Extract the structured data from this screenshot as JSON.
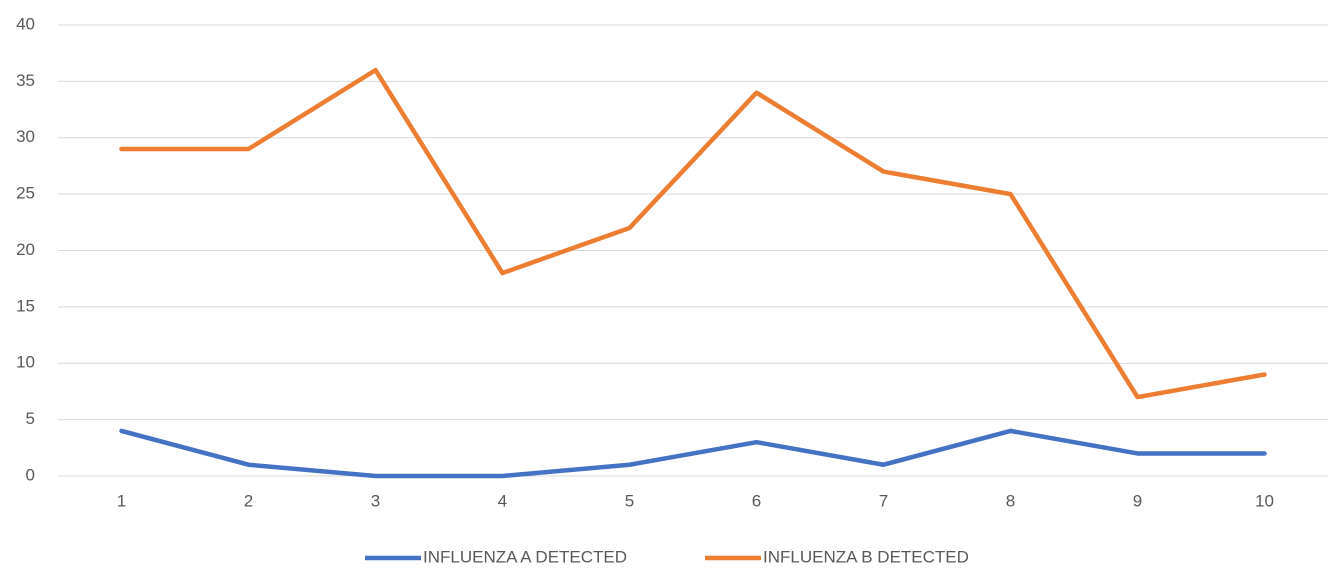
{
  "chart_data": {
    "type": "line",
    "categories": [
      "1",
      "2",
      "3",
      "4",
      "5",
      "6",
      "7",
      "8",
      "9",
      "10"
    ],
    "series": [
      {
        "name": "INFLUENZA A DETECTED",
        "color": "#4472c4",
        "values": [
          4,
          1,
          0,
          0,
          1,
          3,
          1,
          4,
          2,
          2
        ]
      },
      {
        "name": "INFLUENZA B DETECTED",
        "color": "#ed7d31",
        "values": [
          29,
          29,
          36,
          18,
          22,
          34,
          27,
          25,
          7,
          9
        ]
      }
    ],
    "ylim": [
      0,
      40
    ],
    "yticks": [
      0,
      5,
      10,
      15,
      20,
      25,
      30,
      35,
      40
    ],
    "grid": true,
    "legend": "bottom"
  }
}
